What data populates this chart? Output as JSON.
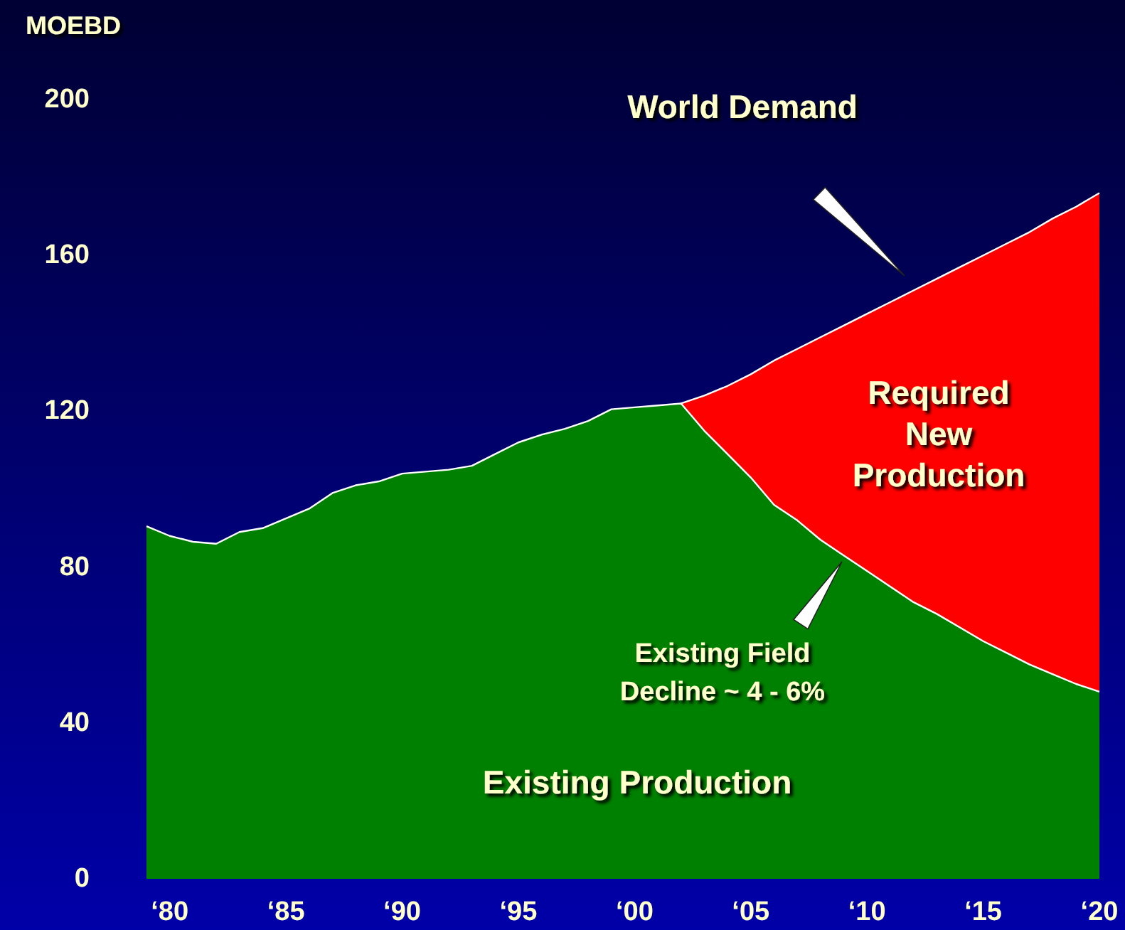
{
  "chart_data": {
    "type": "area",
    "stacked": true,
    "ylabel": "MOEBD",
    "categories": [
      null,
      "‘80",
      null,
      null,
      null,
      null,
      "‘85",
      null,
      null,
      null,
      null,
      "‘90",
      null,
      null,
      null,
      null,
      "‘95",
      null,
      null,
      null,
      null,
      "‘00",
      null,
      null,
      null,
      null,
      "‘05",
      null,
      null,
      null,
      null,
      "‘10",
      null,
      null,
      null,
      null,
      "‘15",
      null,
      null,
      null,
      null,
      "‘20"
    ],
    "series": [
      {
        "name": "Existing Production",
        "color": "#008000",
        "values": [
          90.5,
          88,
          86.5,
          86,
          89,
          90,
          92.5,
          95,
          99,
          101,
          102,
          104,
          104.5,
          105,
          106,
          109,
          112,
          114,
          115.5,
          117.5,
          120.5,
          121,
          121.5,
          122,
          115,
          109,
          103,
          96,
          92,
          87,
          83,
          79,
          75,
          71,
          68,
          64.5,
          61,
          58,
          55,
          52.5,
          50,
          48
        ]
      },
      {
        "name": "Required New Production",
        "color": "#ff0000",
        "values": [
          null,
          null,
          null,
          null,
          null,
          null,
          null,
          null,
          null,
          null,
          null,
          null,
          null,
          null,
          null,
          null,
          null,
          null,
          null,
          null,
          null,
          null,
          null,
          0,
          9,
          17.5,
          26.5,
          37,
          44,
          52,
          59,
          66,
          73,
          80,
          86,
          92.5,
          99,
          105,
          111,
          117,
          122.5,
          128
        ]
      }
    ],
    "ylim": [
      0,
      200
    ],
    "yticks": [
      0,
      40,
      80,
      120,
      160,
      200
    ],
    "grid": false,
    "legend": false,
    "annotations": [
      "World Demand",
      "Existing Field Decline ~ 4 - 6%"
    ]
  }
}
